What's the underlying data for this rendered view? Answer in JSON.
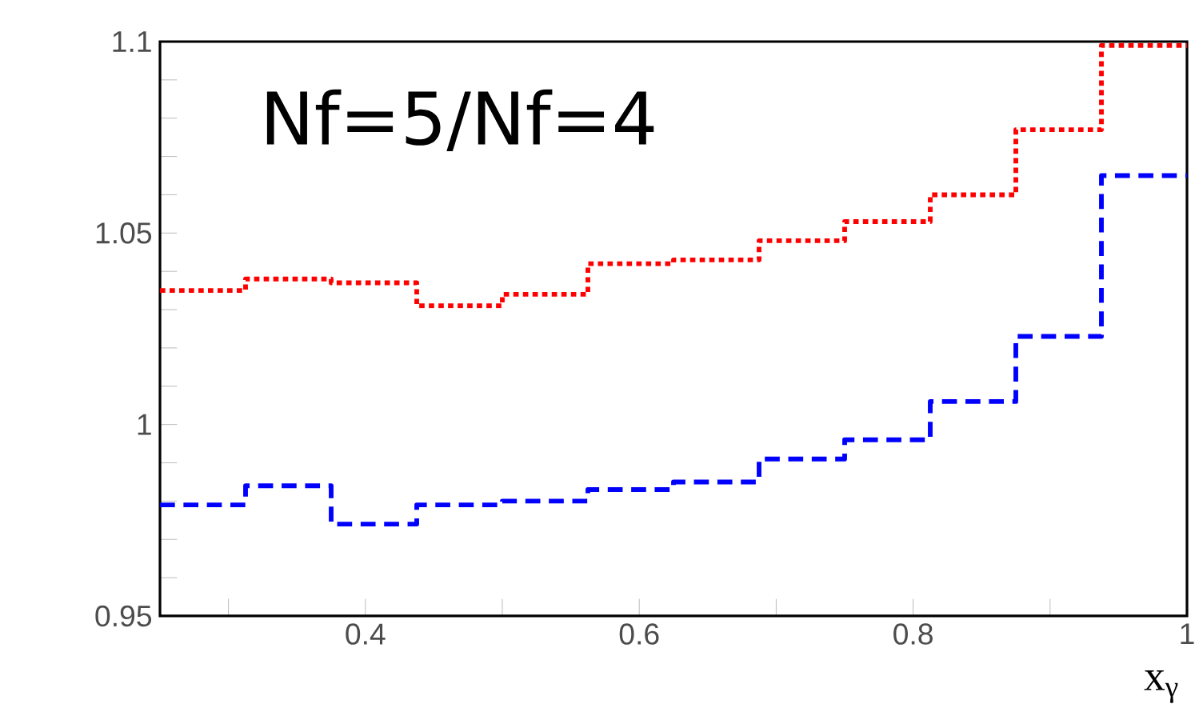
{
  "chart_data": {
    "type": "histogram",
    "bins": [
      0.25,
      0.3125,
      0.375,
      0.4375,
      0.5,
      0.5625,
      0.625,
      0.6875,
      0.75,
      0.8125,
      0.875,
      0.9375,
      1.0
    ],
    "series": [
      {
        "color": "#ff0000",
        "line_style": "dotted",
        "values": [
          1.035,
          1.038,
          1.037,
          1.031,
          1.034,
          1.042,
          1.043,
          1.048,
          1.053,
          1.06,
          1.077,
          1.099
        ]
      },
      {
        "color": "#0000ff",
        "line_style": "dashed",
        "values": [
          0.979,
          0.984,
          0.974,
          0.979,
          0.98,
          0.983,
          0.985,
          0.991,
          0.996,
          1.006,
          1.023,
          1.065
        ]
      }
    ],
    "xlabel": "x$_{γ}$",
    "annotations": [
      "Nf=5/Nf=4"
    ],
    "xlim": [
      0.25,
      1.0
    ],
    "ylim": [
      0.95,
      1.1
    ],
    "xticks": [
      {
        "value": 0.3,
        "label": null
      },
      0.4,
      {
        "value": 0.5,
        "label": null
      },
      0.6,
      {
        "value": 0.7,
        "label": null
      },
      0.8,
      {
        "value": 0.9,
        "label": null
      },
      1
    ],
    "yticks": [
      0.95,
      {
        "value": 0.96,
        "label": null
      },
      {
        "value": 0.97,
        "label": null
      },
      {
        "value": 0.98,
        "label": null
      },
      {
        "value": 0.99,
        "label": null
      },
      1,
      {
        "value": 1.01,
        "label": null
      },
      {
        "value": 1.02,
        "label": null
      },
      {
        "value": 1.03,
        "label": null
      },
      {
        "value": 1.04,
        "label": null
      },
      1.05,
      {
        "value": 1.06,
        "label": null
      },
      {
        "value": 1.07,
        "label": null
      },
      {
        "value": 1.08,
        "label": null
      },
      {
        "value": 1.09,
        "label": null
      },
      1.1
    ]
  }
}
